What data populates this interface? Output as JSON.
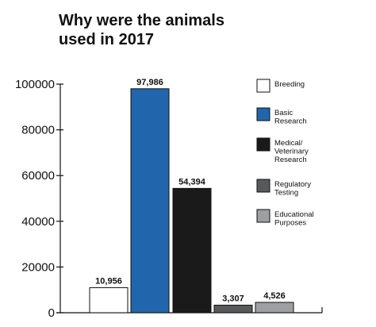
{
  "chart_data": {
    "type": "bar",
    "title": "Why were the animals used in 2017",
    "categories": [
      "Breeding",
      "Basic Research",
      "Medical/ Veterinary Research",
      "Regulatory Testing",
      "Educational Purposes"
    ],
    "values": [
      10956,
      97986,
      54394,
      3307,
      4526
    ],
    "value_labels": [
      "10,956",
      "97,986",
      "54,394",
      "3,307",
      "4,526"
    ],
    "colors": [
      "#ffffff",
      "#2166ac",
      "#1a1a1a",
      "#58595b",
      "#9d9fa2"
    ],
    "legend": [
      {
        "lines": [
          "Breeding"
        ],
        "color": "#ffffff"
      },
      {
        "lines": [
          "Basic",
          "Research"
        ],
        "color": "#2166ac"
      },
      {
        "lines": [
          "Medical/",
          "Veterinary",
          "Research"
        ],
        "color": "#1a1a1a"
      },
      {
        "lines": [
          "Regulatory",
          "Testing"
        ],
        "color": "#58595b"
      },
      {
        "lines": [
          "Educational",
          "Purposes"
        ],
        "color": "#9d9fa2"
      }
    ],
    "legend_position": "right",
    "ylim": [
      0,
      100000
    ],
    "yticks": [
      "0",
      "20000",
      "40000",
      "60000",
      "80000",
      "100000"
    ],
    "grid": false
  }
}
